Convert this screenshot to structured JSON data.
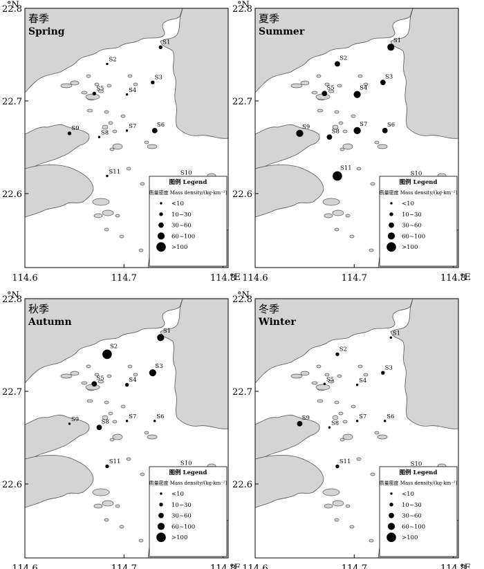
{
  "axes": {
    "y_unit": "°N",
    "x_unit": "°E",
    "y_ticks": [
      "22.8",
      "22.7",
      "22.6"
    ],
    "x_ticks": [
      "114.6",
      "114.7",
      "114.8"
    ]
  },
  "legend": {
    "title": "图例 Legend",
    "unit": "质量密度 Mass density/(kg·km⁻²)",
    "classes": [
      "<10",
      "10~30",
      "30~60",
      "60~100",
      ">100"
    ]
  },
  "colors": {
    "land": "#d4d4d4",
    "sea": "#ffffff",
    "marker": "#000000"
  },
  "chart_data": [
    {
      "type": "map-bubble",
      "title_cn": "春季",
      "title_en": "Spring",
      "points": [
        {
          "name": "S1",
          "lon": 114.737,
          "lat": 22.758,
          "class": 1
        },
        {
          "name": "S2",
          "lon": 114.683,
          "lat": 22.74,
          "class": 0
        },
        {
          "name": "S3",
          "lon": 114.729,
          "lat": 22.72,
          "class": 1
        },
        {
          "name": "S4",
          "lon": 114.703,
          "lat": 22.707,
          "class": 0
        },
        {
          "name": "S5",
          "lon": 114.67,
          "lat": 22.708,
          "class": 1
        },
        {
          "name": "S6",
          "lon": 114.731,
          "lat": 22.668,
          "class": 2
        },
        {
          "name": "S7",
          "lon": 114.703,
          "lat": 22.668,
          "class": 0
        },
        {
          "name": "S8",
          "lon": 114.675,
          "lat": 22.661,
          "class": 0
        },
        {
          "name": "S9",
          "lon": 114.645,
          "lat": 22.665,
          "class": 1
        },
        {
          "name": "S10",
          "lon": 114.755,
          "lat": 22.617,
          "class": 1
        },
        {
          "name": "S11",
          "lon": 114.683,
          "lat": 22.619,
          "class": 0
        }
      ]
    },
    {
      "type": "map-bubble",
      "title_cn": "夏季",
      "title_en": "Summer",
      "points": [
        {
          "name": "S1",
          "lon": 114.737,
          "lat": 22.758,
          "class": 3
        },
        {
          "name": "S2",
          "lon": 114.683,
          "lat": 22.74,
          "class": 2
        },
        {
          "name": "S3",
          "lon": 114.729,
          "lat": 22.72,
          "class": 2
        },
        {
          "name": "S4",
          "lon": 114.703,
          "lat": 22.707,
          "class": 3
        },
        {
          "name": "S5",
          "lon": 114.67,
          "lat": 22.708,
          "class": 2
        },
        {
          "name": "S6",
          "lon": 114.731,
          "lat": 22.668,
          "class": 2
        },
        {
          "name": "S7",
          "lon": 114.703,
          "lat": 22.668,
          "class": 3
        },
        {
          "name": "S8",
          "lon": 114.675,
          "lat": 22.661,
          "class": 2
        },
        {
          "name": "S9",
          "lon": 114.645,
          "lat": 22.665,
          "class": 3
        },
        {
          "name": "S10",
          "lon": 114.755,
          "lat": 22.617,
          "class": 0
        },
        {
          "name": "S11",
          "lon": 114.683,
          "lat": 22.619,
          "class": 4
        }
      ]
    },
    {
      "type": "map-bubble",
      "title_cn": "秋季",
      "title_en": "Autumn",
      "points": [
        {
          "name": "S1",
          "lon": 114.737,
          "lat": 22.758,
          "class": 3
        },
        {
          "name": "S2",
          "lon": 114.683,
          "lat": 22.74,
          "class": 4
        },
        {
          "name": "S3",
          "lon": 114.729,
          "lat": 22.72,
          "class": 3
        },
        {
          "name": "S4",
          "lon": 114.703,
          "lat": 22.707,
          "class": 1
        },
        {
          "name": "S5",
          "lon": 114.67,
          "lat": 22.708,
          "class": 2
        },
        {
          "name": "S6",
          "lon": 114.731,
          "lat": 22.668,
          "class": 0
        },
        {
          "name": "S7",
          "lon": 114.703,
          "lat": 22.668,
          "class": 0
        },
        {
          "name": "S8",
          "lon": 114.675,
          "lat": 22.661,
          "class": 2
        },
        {
          "name": "S9",
          "lon": 114.645,
          "lat": 22.665,
          "class": 0
        },
        {
          "name": "S10",
          "lon": 114.755,
          "lat": 22.617,
          "class": 1
        },
        {
          "name": "S11",
          "lon": 114.683,
          "lat": 22.619,
          "class": 1
        }
      ]
    },
    {
      "type": "map-bubble",
      "title_cn": "冬季",
      "title_en": "Winter",
      "points": [
        {
          "name": "S1",
          "lon": 114.737,
          "lat": 22.758,
          "class": 0
        },
        {
          "name": "S2",
          "lon": 114.683,
          "lat": 22.74,
          "class": 1
        },
        {
          "name": "S3",
          "lon": 114.729,
          "lat": 22.72,
          "class": 1
        },
        {
          "name": "S4",
          "lon": 114.703,
          "lat": 22.707,
          "class": 0
        },
        {
          "name": "S5",
          "lon": 114.67,
          "lat": 22.708,
          "class": 0
        },
        {
          "name": "S6",
          "lon": 114.731,
          "lat": 22.668,
          "class": 0
        },
        {
          "name": "S7",
          "lon": 114.703,
          "lat": 22.668,
          "class": 0
        },
        {
          "name": "S8",
          "lon": 114.675,
          "lat": 22.661,
          "class": 0
        },
        {
          "name": "S9",
          "lon": 114.645,
          "lat": 22.665,
          "class": 2
        },
        {
          "name": "S10",
          "lon": 114.755,
          "lat": 22.617,
          "class": 0
        },
        {
          "name": "S11",
          "lon": 114.683,
          "lat": 22.619,
          "class": 1
        }
      ]
    }
  ]
}
